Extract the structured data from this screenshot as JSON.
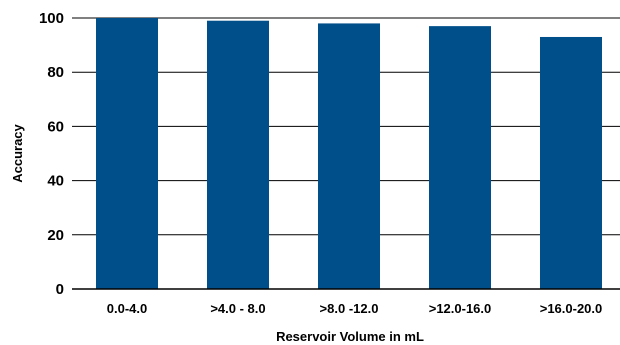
{
  "chart_data": {
    "type": "bar",
    "categories": [
      "0.0-4.0",
      ">4.0 - 8.0",
      ">8.0 -12.0",
      ">12.0-16.0",
      ">16.0-20.0"
    ],
    "values": [
      100,
      99,
      98,
      97,
      93
    ],
    "xlabel": "Reservoir Volume in mL",
    "ylabel": "Accuracy",
    "ylim": [
      0,
      100
    ],
    "yticks": [
      0,
      20,
      40,
      60,
      80,
      100
    ],
    "grid": true,
    "bar_color": "#004f8a",
    "grid_color": "#000000"
  }
}
